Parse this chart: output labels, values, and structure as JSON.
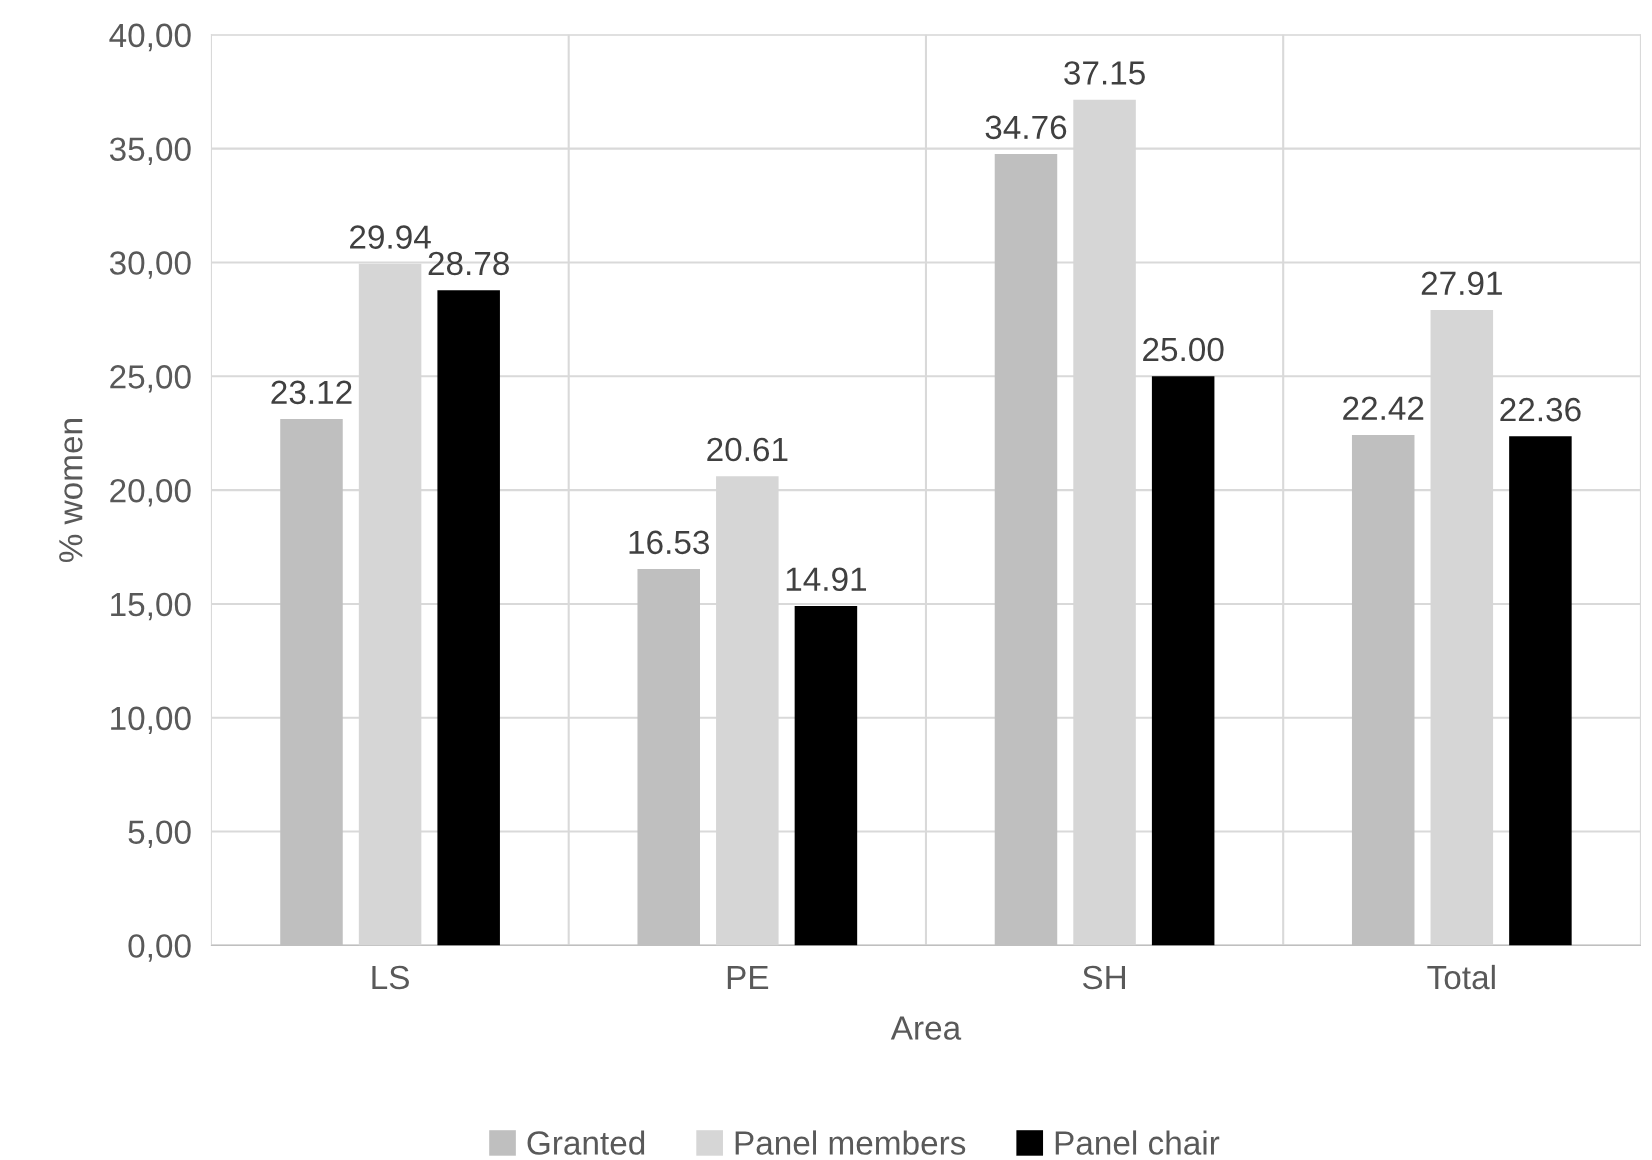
{
  "chart_data": {
    "type": "bar",
    "xlabel": "Area",
    "ylabel": "% women",
    "categories": [
      "LS",
      "PE",
      "SH",
      "Total"
    ],
    "series": [
      {
        "name": "Granted",
        "color": "#bfbfbf",
        "values": [
          23.12,
          16.53,
          34.76,
          22.42
        ],
        "value_labels": [
          "23.12",
          "16.53",
          "34.76",
          "22.42"
        ]
      },
      {
        "name": "Panel members",
        "color": "#d6d6d6",
        "values": [
          29.94,
          20.61,
          37.15,
          27.91
        ],
        "value_labels": [
          "29.94",
          "20.61",
          "37.15",
          "27.91"
        ]
      },
      {
        "name": "Panel chair",
        "color": "#000000",
        "values": [
          28.78,
          14.91,
          25.0,
          22.36
        ],
        "value_labels": [
          "28.78",
          "14.91",
          "25.00",
          "22.36"
        ]
      }
    ],
    "ylim": [
      0,
      40
    ],
    "yticks": [
      {
        "value": 0,
        "label": "0,00"
      },
      {
        "value": 5,
        "label": "5,00"
      },
      {
        "value": 10,
        "label": "10,00"
      },
      {
        "value": 15,
        "label": "15,00"
      },
      {
        "value": 20,
        "label": "20,00"
      },
      {
        "value": 25,
        "label": "25,00"
      },
      {
        "value": 30,
        "label": "30,00"
      },
      {
        "value": 35,
        "label": "35,00"
      },
      {
        "value": 40,
        "label": "40,00"
      }
    ],
    "grid": true,
    "legend": "bottom"
  }
}
